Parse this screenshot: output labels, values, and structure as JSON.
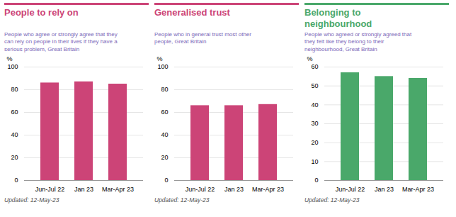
{
  "chart_data": [
    {
      "type": "bar",
      "title": "People to rely on",
      "subtitle": "People who agree or strongly agree that they\ncan rely on people in their lives if they have a\nserious problem, Great Britain",
      "categories": [
        "Jun-Jul 22",
        "Jan 23",
        "Mar-Apr 23"
      ],
      "values": [
        86,
        87,
        85
      ],
      "color": "#cc4477",
      "ylabel": "%",
      "ylim": [
        0,
        100
      ],
      "yticks": [
        0,
        20,
        40,
        60,
        80,
        100
      ],
      "grid": true,
      "annotations": [
        "Updated: 12-May-23"
      ]
    },
    {
      "type": "bar",
      "title": "Generalised trust",
      "subtitle": "People who in general trust most other\npeople, Great Britain",
      "categories": [
        "Jun-Jul 22",
        "Jan 23",
        "Mar-Apr 23"
      ],
      "values": [
        66,
        66,
        67
      ],
      "color": "#cc4477",
      "ylabel": "%",
      "ylim": [
        0,
        100
      ],
      "yticks": [
        0,
        20,
        40,
        60,
        80,
        100
      ],
      "grid": true,
      "annotations": [
        "Updated: 12-May-23"
      ]
    },
    {
      "type": "bar",
      "title": "Belonging to\nneighbourhood",
      "subtitle": "People who agreed or strongly agreed that\nthey felt like they belong to their\nneighbourhood, Great Britain",
      "categories": [
        "Jun-Jul 22",
        "Jan 23",
        "Mar-Apr 23"
      ],
      "values": [
        57,
        55,
        54
      ],
      "color": "#4aa86a",
      "ylabel": "%",
      "ylim": [
        0,
        60
      ],
      "yticks": [
        0,
        10,
        20,
        30,
        40,
        50,
        60
      ],
      "grid": true,
      "annotations": [
        "Updated: 12-May-23"
      ]
    }
  ]
}
